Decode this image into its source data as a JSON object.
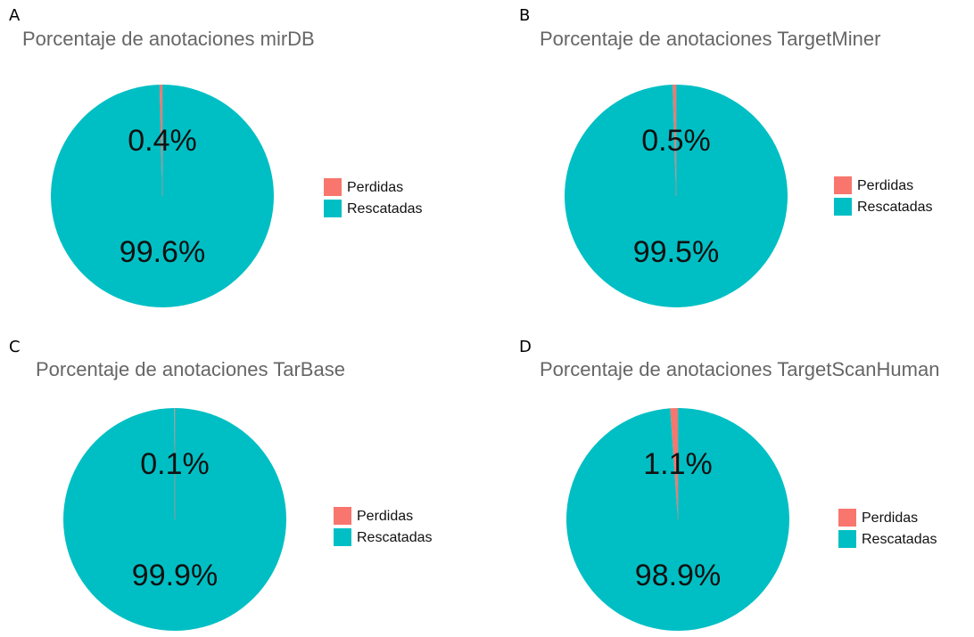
{
  "chart_data": [
    {
      "type": "pie",
      "panel": "A",
      "title": "Porcentaje de anotaciones mirDB",
      "categories": [
        "Perdidas",
        "Rescatadas"
      ],
      "values": [
        0.4,
        99.6
      ],
      "value_labels": [
        "0.4%",
        "99.6%"
      ],
      "colors": [
        "#f8766d",
        "#00bfc4"
      ],
      "legend": "right"
    },
    {
      "type": "pie",
      "panel": "B",
      "title": "Porcentaje de anotaciones TargetMiner",
      "categories": [
        "Perdidas",
        "Rescatadas"
      ],
      "values": [
        0.5,
        99.5
      ],
      "value_labels": [
        "0.5%",
        "99.5%"
      ],
      "colors": [
        "#f8766d",
        "#00bfc4"
      ],
      "legend": "right"
    },
    {
      "type": "pie",
      "panel": "C",
      "title": "Porcentaje de anotaciones TarBase",
      "categories": [
        "Perdidas",
        "Rescatadas"
      ],
      "values": [
        0.1,
        99.9
      ],
      "value_labels": [
        "0.1%",
        "99.9%"
      ],
      "colors": [
        "#f8766d",
        "#00bfc4"
      ],
      "legend": "right"
    },
    {
      "type": "pie",
      "panel": "D",
      "title": "Porcentaje de anotaciones TargetScanHuman",
      "categories": [
        "Perdidas",
        "Rescatadas"
      ],
      "values": [
        1.1,
        98.9
      ],
      "value_labels": [
        "1.1%",
        "98.9%"
      ],
      "colors": [
        "#f8766d",
        "#00bfc4"
      ],
      "legend": "right"
    }
  ]
}
